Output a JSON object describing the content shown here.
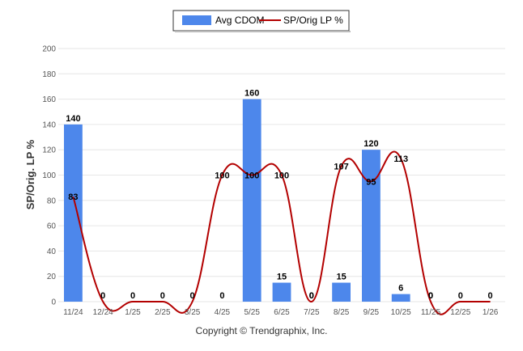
{
  "chart_data": {
    "type": "bar",
    "categories": [
      "11/24",
      "12/24",
      "1/25",
      "2/25",
      "3/25",
      "4/25",
      "5/25",
      "6/25",
      "7/25",
      "8/25",
      "9/25",
      "10/25",
      "11/25",
      "12/25",
      "1/26"
    ],
    "series": [
      {
        "name": "Avg CDOM",
        "type": "bar",
        "values": [
          140,
          0,
          0,
          0,
          0,
          0,
          160,
          15,
          0,
          15,
          120,
          6,
          0,
          0,
          0
        ],
        "labels": [
          "140",
          "0",
          "0",
          "0",
          "0",
          "0",
          "160",
          "15",
          "0",
          "15",
          "120",
          "6",
          "0",
          "0",
          "0"
        ]
      },
      {
        "name": "SP/Orig LP %",
        "type": "line",
        "values": [
          83,
          0,
          0,
          0,
          0,
          100,
          100,
          100,
          0,
          107,
          95,
          113,
          0,
          0,
          0
        ],
        "labels": [
          "83",
          "",
          "",
          "",
          "",
          "100",
          "100",
          "100",
          "0",
          "107",
          "95",
          "113",
          "0",
          "",
          ""
        ]
      }
    ],
    "ylabel": "SP/Orig. LP %",
    "ylim": [
      0,
      200
    ],
    "yticks": [
      "0",
      "20",
      "40",
      "60",
      "80",
      "100",
      "120",
      "140",
      "160",
      "180",
      "200"
    ],
    "grid": true,
    "legend_position": "top-center",
    "colors": {
      "bar": "#4d87eb",
      "line": "#b30000"
    }
  },
  "footer": {
    "text": "Copyright © Trendgraphix, Inc."
  }
}
